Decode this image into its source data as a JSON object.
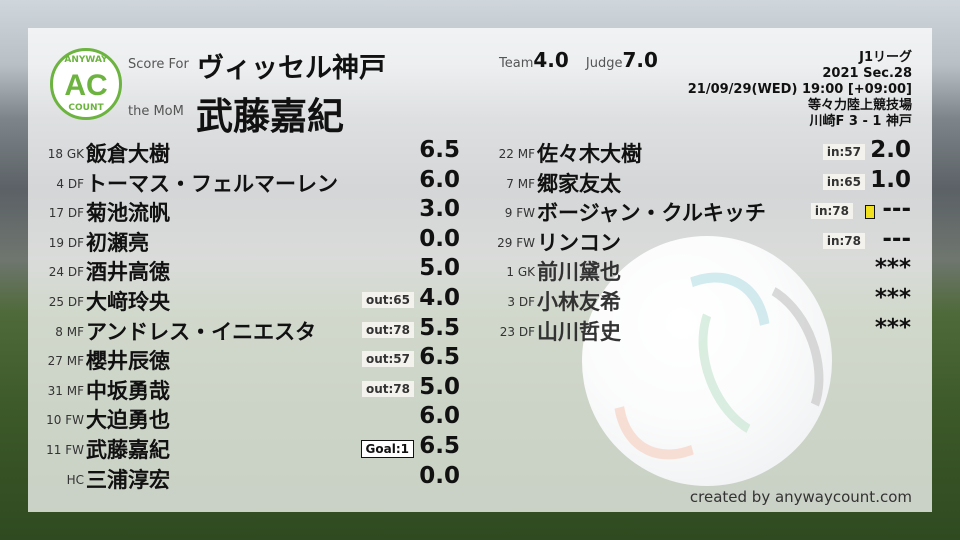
{
  "header": {
    "score_for_label": "Score For",
    "team": "ヴィッセル神戸",
    "mom_label": "the MoM",
    "mom_player": "武藤嘉紀",
    "team_score_label": "Team",
    "team_score": "4.0",
    "judge_label": "Judge",
    "judge_score": "7.0",
    "logo": {
      "top": "ANYWAY",
      "mid": "AC",
      "bottom": "COUNT",
      "color": "#6cb33f"
    }
  },
  "match": {
    "league": "J1リーグ",
    "section": "2021 Sec.28",
    "datetime": "21/09/29(WED) 19:00 [+09:00]",
    "venue": "等々力陸上競技場",
    "result": "川崎F 3 - 1 神戸"
  },
  "left_players": [
    {
      "num": "18 GK",
      "name": "飯倉大樹",
      "badge": "",
      "score": "6.5"
    },
    {
      "num": "4 DF",
      "name": "トーマス・フェルマーレン",
      "badge": "",
      "score": "6.0"
    },
    {
      "num": "17 DF",
      "name": "菊池流帆",
      "badge": "",
      "score": "3.0"
    },
    {
      "num": "19 DF",
      "name": "初瀬亮",
      "badge": "",
      "score": "0.0"
    },
    {
      "num": "24 DF",
      "name": "酒井高徳",
      "badge": "",
      "score": "5.0"
    },
    {
      "num": "25 DF",
      "name": "大﨑玲央",
      "badge": "out:65",
      "score": "4.0"
    },
    {
      "num": "8 MF",
      "name": "アンドレス・イニエスタ",
      "badge": "out:78",
      "score": "5.5"
    },
    {
      "num": "27 MF",
      "name": "櫻井辰徳",
      "badge": "out:57",
      "score": "6.5"
    },
    {
      "num": "31 MF",
      "name": "中坂勇哉",
      "badge": "out:78",
      "score": "5.0"
    },
    {
      "num": "10 FW",
      "name": "大迫勇也",
      "badge": "",
      "score": "6.0"
    },
    {
      "num": "11 FW",
      "name": "武藤嘉紀",
      "badge": "Goal:1",
      "score": "6.5"
    },
    {
      "num": "HC",
      "name": "三浦淳宏",
      "badge": "",
      "score": "0.0"
    }
  ],
  "right_players": [
    {
      "num": "22 MF",
      "name": "佐々木大樹",
      "badge": "in:57",
      "score": "2.0"
    },
    {
      "num": "7 MF",
      "name": "郷家友太",
      "badge": "in:65",
      "score": "1.0"
    },
    {
      "num": "9 FW",
      "name": "ボージャン・クルキッチ",
      "badge": "in:78",
      "score": "---",
      "yellow_card": true
    },
    {
      "num": "29 FW",
      "name": "リンコン",
      "badge": "in:78",
      "score": "---"
    },
    {
      "num": "1 GK",
      "name": "前川黛也",
      "badge": "",
      "score": "***"
    },
    {
      "num": "3 DF",
      "name": "小林友希",
      "badge": "",
      "score": "***"
    },
    {
      "num": "23 DF",
      "name": "山川哲史",
      "badge": "",
      "score": "***"
    }
  ],
  "footer": {
    "credit": "created by anywaycount.com"
  }
}
